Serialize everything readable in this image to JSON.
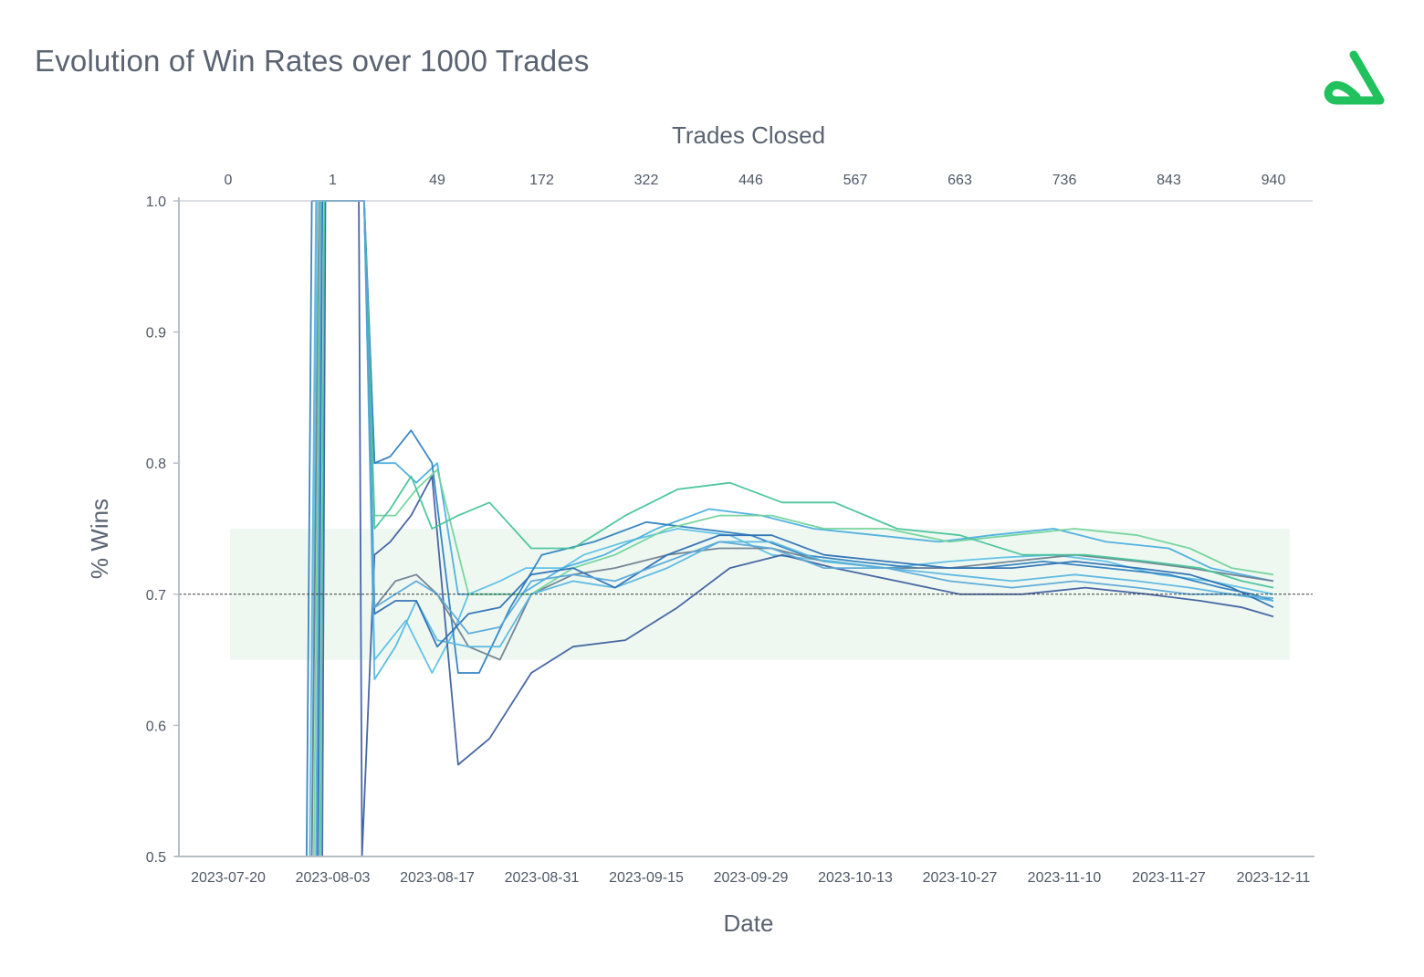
{
  "colors": {
    "band": "#eef8f1",
    "axis": "#b9bec6",
    "target_line": "#3a3a3a",
    "brand_green": "#21c25e",
    "series_palette": [
      "#5bbfe6",
      "#4aaede",
      "#2f7fbf",
      "#3f5f9f",
      "#6e8090",
      "#72d39a",
      "#47c39a",
      "#59b6e0",
      "#2d70b4",
      "#5aa8d8"
    ]
  },
  "title": "Evolution of Win Rates over 1000 Trades",
  "logo": {
    "icon": "brand-triangle-logo-icon"
  },
  "chart_data": {
    "type": "line",
    "title": "Evolution of Win Rates over 1000 Trades",
    "xlabel": "Date",
    "ylabel": "% Wins",
    "x2label": "Trades Closed",
    "x_ticks": [
      "2023-07-20",
      "2023-08-03",
      "2023-08-17",
      "2023-08-31",
      "2023-09-15",
      "2023-09-29",
      "2023-10-13",
      "2023-10-27",
      "2023-11-10",
      "2023-11-27",
      "2023-12-11"
    ],
    "x2_ticks": [
      "0",
      "1",
      "49",
      "172",
      "322",
      "446",
      "567",
      "663",
      "736",
      "843",
      "940"
    ],
    "y_ticks": [
      "1.0",
      "0.9",
      "0.8",
      "0.7",
      "0.6",
      "0.5"
    ],
    "ylim": [
      0.5,
      1.0
    ],
    "x_domain": [
      0,
      10
    ],
    "target_line": 0.7,
    "target_band": [
      0.65,
      0.75
    ],
    "grid": false,
    "series": [
      {
        "x": [
          0.0,
          0.8,
          0.85,
          0.96,
          1.3,
          1.4,
          1.5,
          1.7,
          1.95,
          2.15,
          2.3,
          2.6,
          2.85,
          3.2,
          3.4,
          3.8,
          4.3,
          4.8,
          5.2,
          5.8,
          6.3,
          6.9,
          7.4,
          7.9,
          8.4,
          8.9,
          9.4,
          9.7,
          10.0
        ],
        "y": [
          0.5,
          0.5,
          1.0,
          1.0,
          1.0,
          0.65,
          0.66,
          0.68,
          0.64,
          0.67,
          0.7,
          0.71,
          0.72,
          0.72,
          0.73,
          0.74,
          0.75,
          0.745,
          0.73,
          0.725,
          0.72,
          0.725,
          0.728,
          0.73,
          0.725,
          0.715,
          0.71,
          0.705,
          0.7
        ]
      },
      {
        "x": [
          0.0,
          0.85,
          0.9,
          1.0,
          1.3,
          1.4,
          1.6,
          1.8,
          2.0,
          2.2,
          2.5,
          2.8,
          3.2,
          3.6,
          4.1,
          4.6,
          5.1,
          5.6,
          6.2,
          6.8,
          7.3,
          7.9,
          8.4,
          9.0,
          9.4,
          9.7,
          10.0
        ],
        "y": [
          0.5,
          0.5,
          1.0,
          1.0,
          1.0,
          0.8,
          0.8,
          0.785,
          0.8,
          0.7,
          0.7,
          0.7,
          0.72,
          0.73,
          0.75,
          0.765,
          0.76,
          0.75,
          0.745,
          0.74,
          0.745,
          0.75,
          0.74,
          0.735,
          0.72,
          0.715,
          0.71
        ]
      },
      {
        "x": [
          0.0,
          0.75,
          0.8,
          0.9,
          1.3,
          1.4,
          1.55,
          1.75,
          1.95,
          2.2,
          2.4,
          2.7,
          3.0,
          3.5,
          4.0,
          4.5,
          5.0,
          5.5,
          6.0,
          6.6,
          7.2,
          7.8,
          8.4,
          9.0,
          9.5,
          9.8,
          10.0
        ],
        "y": [
          0.5,
          0.5,
          1.0,
          1.0,
          1.0,
          0.8,
          0.805,
          0.825,
          0.8,
          0.64,
          0.64,
          0.69,
          0.73,
          0.74,
          0.755,
          0.75,
          0.745,
          0.73,
          0.725,
          0.72,
          0.72,
          0.725,
          0.72,
          0.715,
          0.705,
          0.7,
          0.695
        ]
      },
      {
        "x": [
          0.0,
          0.9,
          0.93,
          1.25,
          1.28,
          1.4,
          1.55,
          1.75,
          1.95,
          2.2,
          2.5,
          2.9,
          3.3,
          3.8,
          4.3,
          4.8,
          5.3,
          5.8,
          6.4,
          7.0,
          7.6,
          8.2,
          8.8,
          9.3,
          9.7,
          10.0
        ],
        "y": [
          0.5,
          0.5,
          1.0,
          1.0,
          0.5,
          0.73,
          0.74,
          0.76,
          0.79,
          0.57,
          0.59,
          0.64,
          0.66,
          0.665,
          0.69,
          0.72,
          0.73,
          0.72,
          0.71,
          0.7,
          0.7,
          0.705,
          0.7,
          0.695,
          0.69,
          0.683
        ]
      },
      {
        "x": [
          0.0,
          0.8,
          0.87,
          1.0,
          1.3,
          1.4,
          1.6,
          1.8,
          2.0,
          2.3,
          2.6,
          2.9,
          3.3,
          3.7,
          4.2,
          4.7,
          5.2,
          5.7,
          6.3,
          6.9,
          7.5,
          8.1,
          8.7,
          9.2,
          9.6,
          10.0
        ],
        "y": [
          0.5,
          0.5,
          1.0,
          1.0,
          1.0,
          0.69,
          0.71,
          0.715,
          0.7,
          0.66,
          0.65,
          0.7,
          0.715,
          0.72,
          0.73,
          0.735,
          0.735,
          0.725,
          0.72,
          0.72,
          0.725,
          0.73,
          0.725,
          0.72,
          0.715,
          0.71
        ]
      },
      {
        "x": [
          0.0,
          0.82,
          0.88,
          1.0,
          1.3,
          1.4,
          1.6,
          1.8,
          2.0,
          2.3,
          2.6,
          2.9,
          3.3,
          3.7,
          4.2,
          4.7,
          5.2,
          5.7,
          6.3,
          6.9,
          7.5,
          8.1,
          8.7,
          9.2,
          9.6,
          10.0
        ],
        "y": [
          0.5,
          0.5,
          1.0,
          1.0,
          1.0,
          0.76,
          0.76,
          0.78,
          0.795,
          0.7,
          0.7,
          0.7,
          0.72,
          0.73,
          0.75,
          0.76,
          0.76,
          0.75,
          0.75,
          0.74,
          0.745,
          0.75,
          0.745,
          0.735,
          0.72,
          0.715
        ]
      },
      {
        "x": [
          0.0,
          0.88,
          0.92,
          1.0,
          1.3,
          1.4,
          1.55,
          1.75,
          1.95,
          2.2,
          2.5,
          2.9,
          3.3,
          3.8,
          4.3,
          4.8,
          5.3,
          5.8,
          6.4,
          7.0,
          7.6,
          8.2,
          8.8,
          9.3,
          9.7,
          10.0
        ],
        "y": [
          0.5,
          0.5,
          1.0,
          1.0,
          1.0,
          0.75,
          0.765,
          0.79,
          0.75,
          0.76,
          0.77,
          0.735,
          0.735,
          0.76,
          0.78,
          0.785,
          0.77,
          0.77,
          0.75,
          0.745,
          0.73,
          0.73,
          0.725,
          0.72,
          0.71,
          0.705
        ]
      },
      {
        "x": [
          0.0,
          0.78,
          0.84,
          1.0,
          1.3,
          1.4,
          1.6,
          1.8,
          2.0,
          2.3,
          2.6,
          2.9,
          3.3,
          3.7,
          4.2,
          4.7,
          5.2,
          5.7,
          6.3,
          6.9,
          7.5,
          8.1,
          8.7,
          9.2,
          9.6,
          10.0
        ],
        "y": [
          0.5,
          0.5,
          1.0,
          1.0,
          1.0,
          0.635,
          0.66,
          0.695,
          0.665,
          0.66,
          0.66,
          0.7,
          0.71,
          0.705,
          0.72,
          0.74,
          0.74,
          0.725,
          0.72,
          0.715,
          0.71,
          0.715,
          0.71,
          0.705,
          0.7,
          0.695
        ]
      },
      {
        "x": [
          0.0,
          0.86,
          0.9,
          1.0,
          1.3,
          1.4,
          1.6,
          1.8,
          2.0,
          2.3,
          2.6,
          2.9,
          3.3,
          3.7,
          4.2,
          4.7,
          5.2,
          5.7,
          6.3,
          6.9,
          7.5,
          8.1,
          8.7,
          9.2,
          9.6,
          10.0
        ],
        "y": [
          0.5,
          0.5,
          1.0,
          1.0,
          1.0,
          0.685,
          0.695,
          0.695,
          0.66,
          0.685,
          0.69,
          0.715,
          0.72,
          0.705,
          0.73,
          0.745,
          0.745,
          0.73,
          0.725,
          0.72,
          0.72,
          0.725,
          0.72,
          0.715,
          0.705,
          0.69
        ]
      },
      {
        "x": [
          0.0,
          0.84,
          0.89,
          1.0,
          1.3,
          1.4,
          1.6,
          1.8,
          2.0,
          2.3,
          2.6,
          2.9,
          3.3,
          3.7,
          4.2,
          4.7,
          5.2,
          5.7,
          6.3,
          6.9,
          7.5,
          8.1,
          8.7,
          9.2,
          9.6,
          10.0
        ],
        "y": [
          0.5,
          0.5,
          1.0,
          1.0,
          1.0,
          0.69,
          0.7,
          0.71,
          0.7,
          0.67,
          0.675,
          0.71,
          0.715,
          0.71,
          0.725,
          0.74,
          0.735,
          0.72,
          0.72,
          0.71,
          0.705,
          0.71,
          0.705,
          0.7,
          0.7,
          0.697
        ]
      }
    ]
  }
}
